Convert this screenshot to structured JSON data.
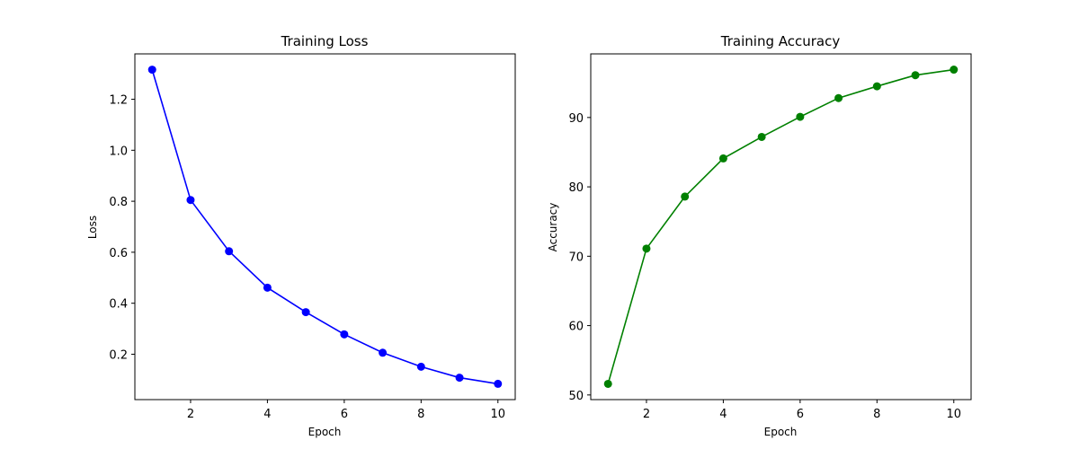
{
  "chart_data": [
    {
      "type": "line",
      "title": "Training Loss",
      "xlabel": "Epoch",
      "ylabel": "Loss",
      "x": [
        1,
        2,
        3,
        4,
        5,
        6,
        7,
        8,
        9,
        10
      ],
      "series": [
        {
          "values": [
            1.316,
            0.805,
            0.604,
            0.461,
            0.365,
            0.278,
            0.206,
            0.151,
            0.108,
            0.084
          ],
          "color": "#0000ff"
        }
      ],
      "xlim": [
        0.55,
        10.45
      ],
      "ylim": [
        0.022,
        1.378
      ],
      "xticks": [
        2,
        4,
        6,
        8,
        10
      ],
      "yticks": [
        0.2,
        0.4,
        0.6,
        0.8,
        1.0,
        1.2
      ],
      "xtick_labels": [
        "2",
        "4",
        "6",
        "8",
        "10"
      ],
      "ytick_labels": [
        "0.2",
        "0.4",
        "0.6",
        "0.8",
        "1.0",
        "1.2"
      ],
      "grid": false,
      "legend": "none"
    },
    {
      "type": "line",
      "title": "Training Accuracy",
      "xlabel": "Epoch",
      "ylabel": "Accuracy",
      "x": [
        1,
        2,
        3,
        4,
        5,
        6,
        7,
        8,
        9,
        10
      ],
      "series": [
        {
          "values": [
            51.6,
            71.1,
            78.6,
            84.1,
            87.2,
            90.1,
            92.8,
            94.5,
            96.1,
            96.9
          ],
          "color": "#008000"
        }
      ],
      "xlim": [
        0.55,
        10.45
      ],
      "ylim": [
        49.33,
        99.17
      ],
      "xticks": [
        2,
        4,
        6,
        8,
        10
      ],
      "yticks": [
        50,
        60,
        70,
        80,
        90
      ],
      "xtick_labels": [
        "2",
        "4",
        "6",
        "8",
        "10"
      ],
      "ytick_labels": [
        "50",
        "60",
        "70",
        "80",
        "90"
      ],
      "grid": false,
      "legend": "none"
    }
  ]
}
